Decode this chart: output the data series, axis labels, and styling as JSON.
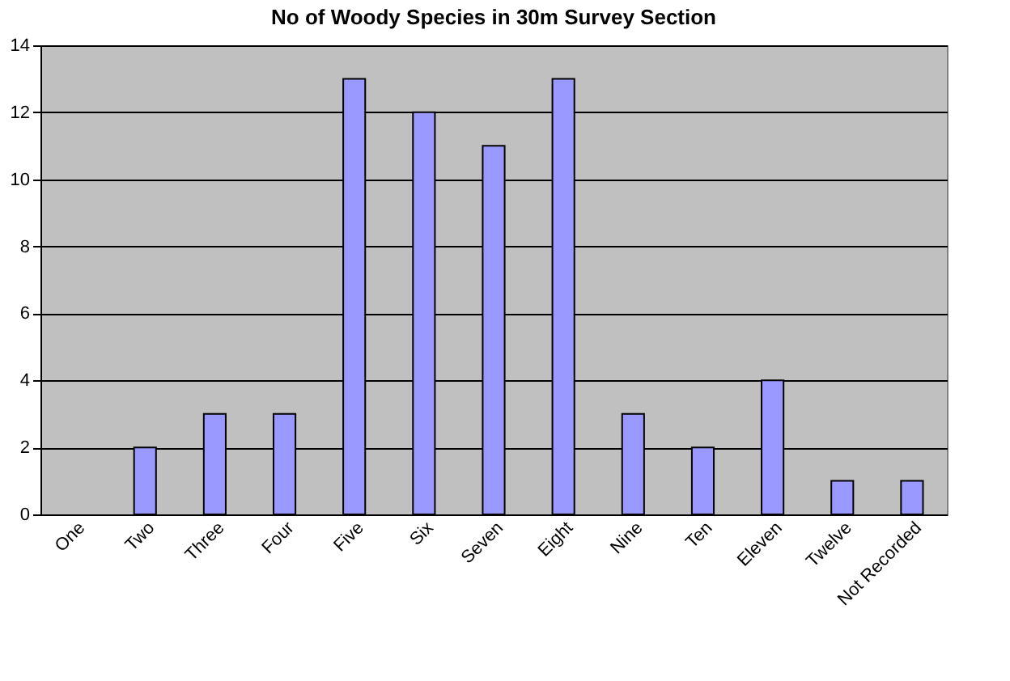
{
  "chart_data": {
    "type": "bar",
    "title": "No of Woody Species in 30m Survey Section",
    "categories": [
      "One",
      "Two",
      "Three",
      "Four",
      "Five",
      "Six",
      "Seven",
      "Eight",
      "Nine",
      "Ten",
      "Eleven",
      "Twelve",
      "Not Recorded"
    ],
    "values": [
      0,
      2,
      3,
      3,
      13,
      12,
      11,
      13,
      3,
      2,
      4,
      1,
      1
    ],
    "color": "#9999ff",
    "ylim": [
      0,
      14
    ],
    "yticks": [
      0,
      2,
      4,
      6,
      8,
      10,
      12,
      14
    ],
    "grid": "y"
  }
}
